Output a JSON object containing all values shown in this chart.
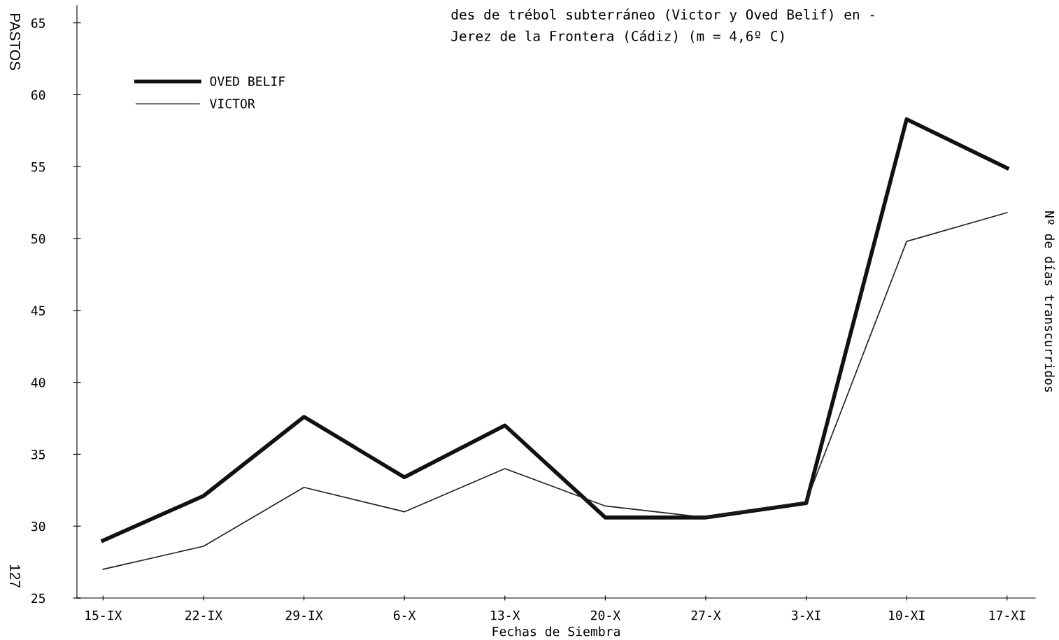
{
  "chart_data": {
    "type": "line",
    "title": "des de trébol subterráneo (Victor y Oved Belif) en -\nJerez de la Frontera (Cádiz) (m = 4,6º C)",
    "xlabel": "Fechas de Siembra",
    "ylabel": "Nº de días transcurridos",
    "categories": [
      "15-IX",
      "22-IX",
      "29-IX",
      "6-X",
      "13-X",
      "20-X",
      "27-X",
      "3-XI",
      "10-XI",
      "17-XI"
    ],
    "series": [
      {
        "name": "OVED BELIF",
        "color": "#111111",
        "values": [
          29.0,
          32.1,
          37.6,
          33.4,
          37.0,
          30.6,
          30.6,
          31.6,
          58.3,
          54.9
        ]
      },
      {
        "name": "VICTOR",
        "color": "#222222",
        "values": [
          27.0,
          28.6,
          32.7,
          31.0,
          34.0,
          31.4,
          30.6,
          31.7,
          49.8,
          51.8
        ]
      }
    ],
    "ylim": [
      25,
      66.2
    ],
    "yticks": [
      25,
      30,
      35,
      40,
      45,
      50,
      55,
      60,
      65
    ],
    "grid": false,
    "legend": "top left",
    "marker": "none",
    "line_style": "solid",
    "annotations": [
      "PASTOS",
      "127"
    ]
  }
}
